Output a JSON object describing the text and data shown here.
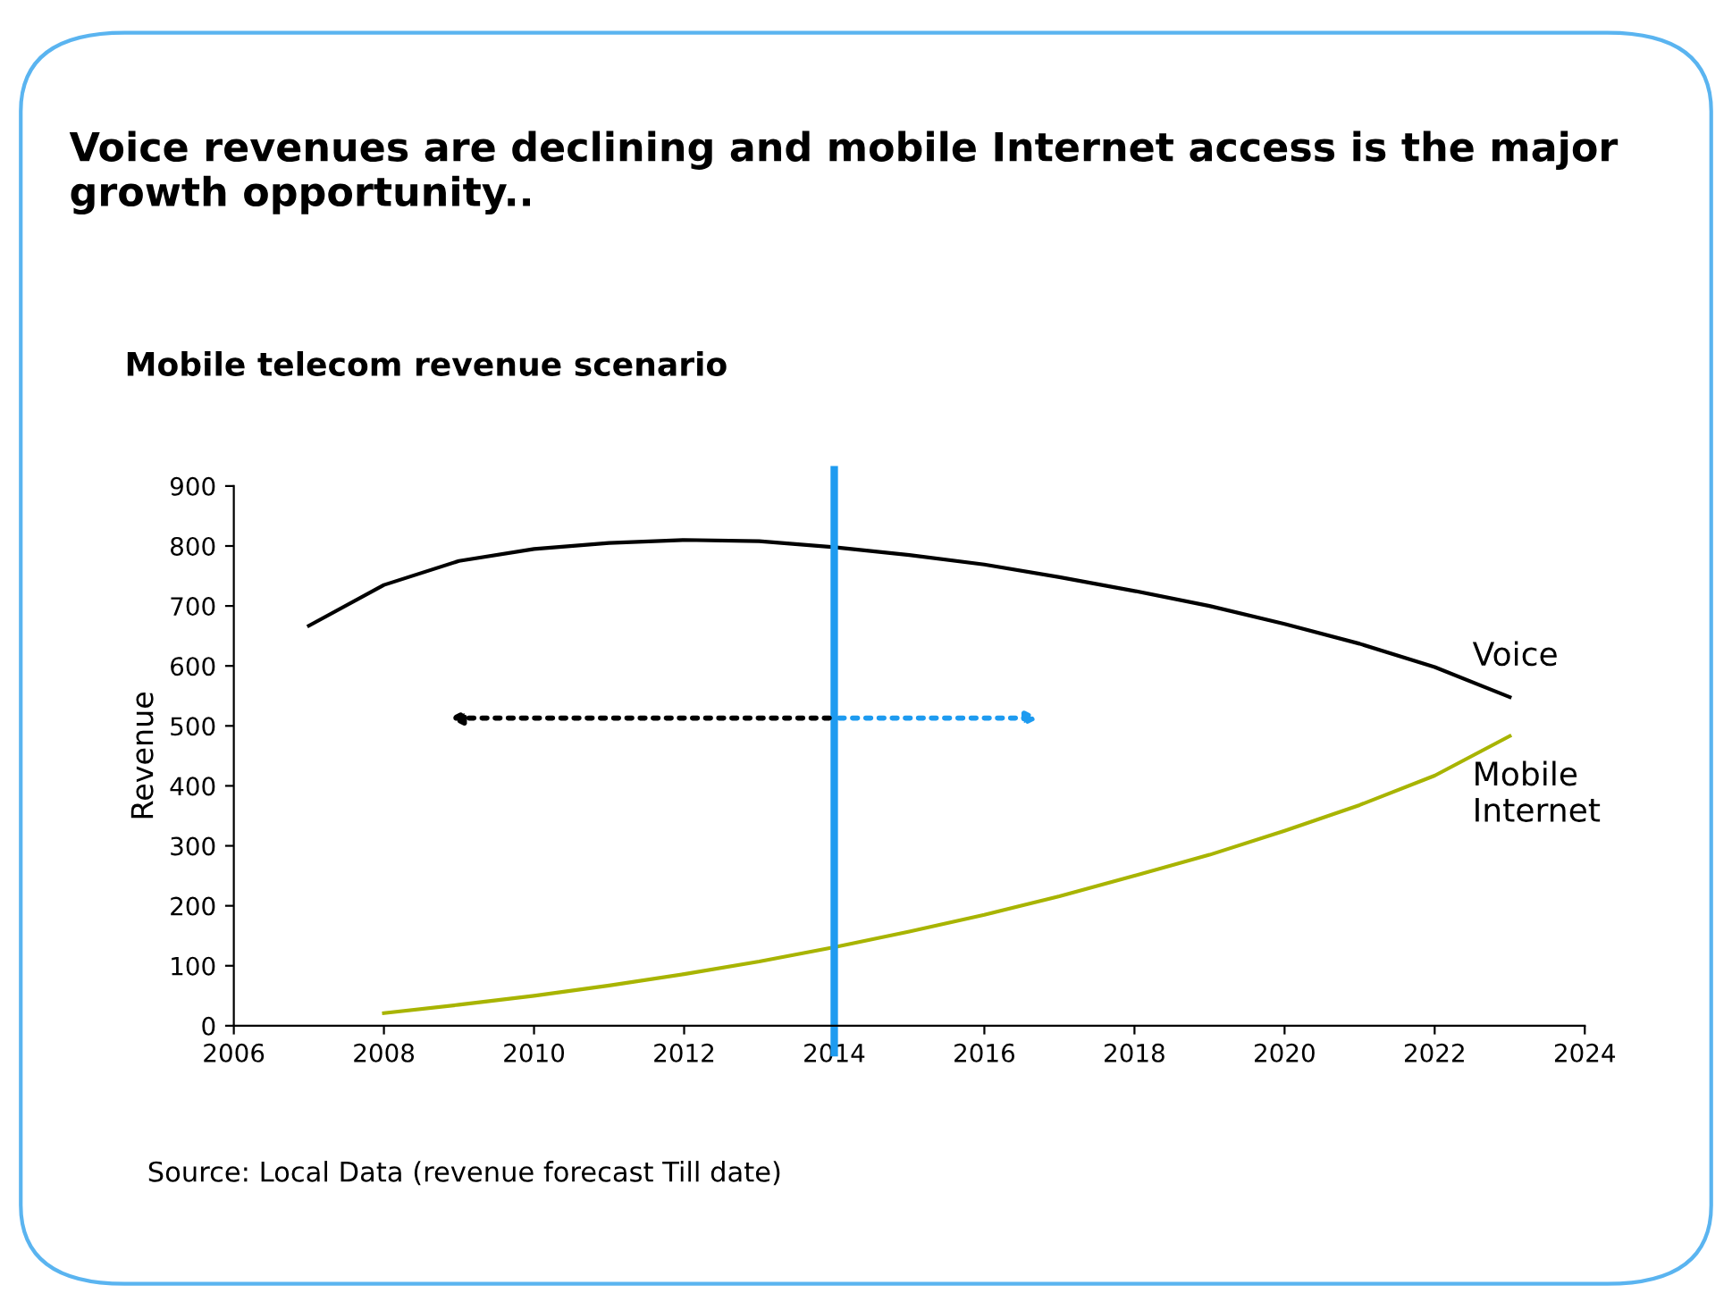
{
  "chart_data": {
    "type": "line",
    "title": "Voice revenues are declining and mobile Internet access is the major growth opportunity..",
    "subtitle": "Mobile telecom revenue scenario",
    "ylabel": "Revenue",
    "series": [
      {
        "name": "Voice",
        "color": "#000000",
        "x": [
          2007,
          2008,
          2009,
          2010,
          2011,
          2012,
          2013,
          2014,
          2015,
          2016,
          2017,
          2018,
          2019,
          2020,
          2021,
          2022,
          2023
        ],
        "values": [
          667,
          735,
          775,
          795,
          805,
          810,
          808,
          798,
          785,
          769,
          748,
          725,
          700,
          670,
          637,
          598,
          548
        ]
      },
      {
        "name": "Mobile Internet",
        "color": "#a8b400",
        "x": [
          2008,
          2009,
          2010,
          2011,
          2012,
          2013,
          2014,
          2015,
          2016,
          2017,
          2018,
          2019,
          2020,
          2021,
          2022,
          2023
        ],
        "values": [
          21,
          35,
          50,
          67,
          86,
          107,
          131,
          157,
          185,
          216,
          250,
          285,
          325,
          368,
          417,
          483
        ]
      }
    ],
    "xlim": [
      2006,
      2024
    ],
    "xticks": [
      2006,
      2008,
      2010,
      2012,
      2014,
      2016,
      2018,
      2020,
      2022,
      2024
    ],
    "ylim": [
      0,
      900
    ],
    "yticks": [
      0,
      100,
      200,
      300,
      400,
      500,
      600,
      700,
      800,
      900
    ],
    "ref_lines": [
      {
        "axis": "x",
        "value": 2014,
        "label": null,
        "color": "#1e9bf0"
      }
    ],
    "annotations": [
      "Source: Local Data (revenue forecast Till date)"
    ],
    "grid": false,
    "legend": false,
    "marker": "none",
    "line_style": "solid"
  }
}
